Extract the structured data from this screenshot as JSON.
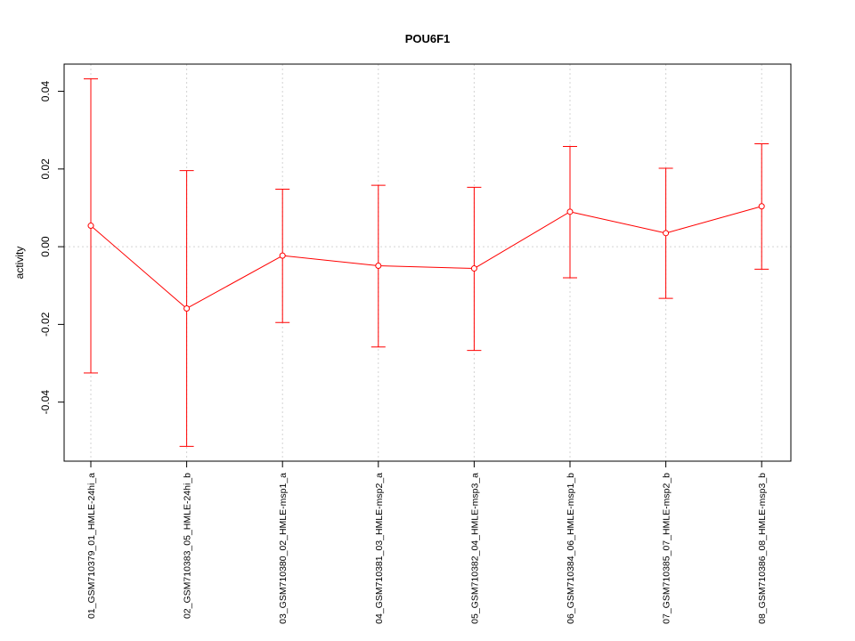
{
  "chart_data": {
    "type": "line",
    "title": "POU6F1",
    "xlabel": "",
    "ylabel": "activity",
    "categories": [
      "01_GSM710379_01_HMLE-24hi_a",
      "02_GSM710383_05_HMLE-24hi_b",
      "03_GSM710380_02_HMLE-msp1_a",
      "04_GSM710381_03_HMLE-msp2_a",
      "05_GSM710382_04_HMLE-msp3_a",
      "06_GSM710384_06_HMLE-msp1_b",
      "07_GSM710385_07_HMLE-msp2_b",
      "08_GSM710386_08_HMLE-msp3_b"
    ],
    "values": [
      0.0054,
      -0.0159,
      -0.0023,
      -0.0049,
      -0.0056,
      0.009,
      0.0035,
      0.0104
    ],
    "upper": [
      0.0432,
      0.0196,
      0.0148,
      0.0158,
      0.0153,
      0.0258,
      0.0202,
      0.0265
    ],
    "lower": [
      -0.0325,
      -0.0514,
      -0.0195,
      -0.0258,
      -0.0267,
      -0.008,
      -0.0133,
      -0.0058
    ],
    "yticks": [
      -0.04,
      -0.02,
      0.0,
      0.02,
      0.04
    ],
    "yticklabels": [
      "-0.04",
      "-0.02",
      "0.00",
      "0.02",
      "0.04"
    ],
    "ylim": [
      -0.0552,
      0.047
    ],
    "grid": true,
    "color": "#ff0000",
    "grid_color": "#d3d3d3"
  }
}
